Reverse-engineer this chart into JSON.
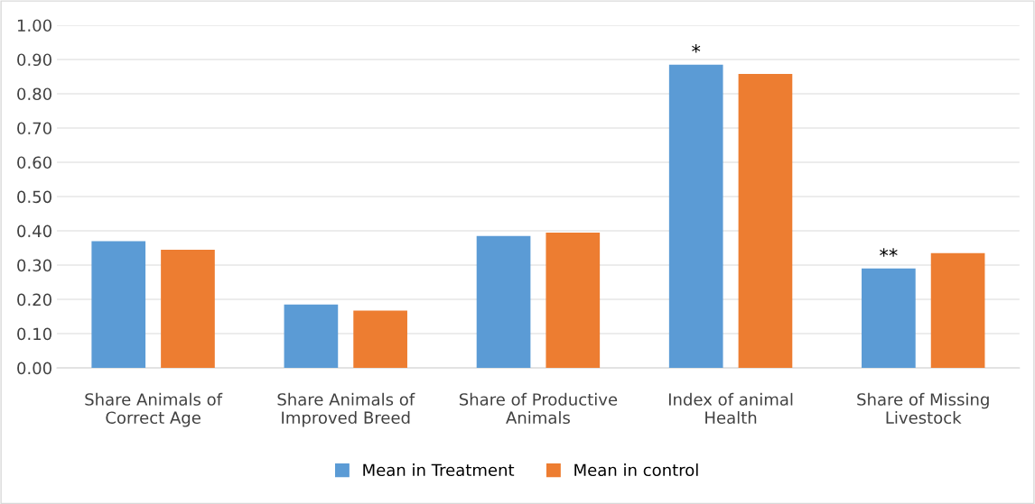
{
  "chart_data": {
    "type": "bar",
    "categories": [
      "Share Animals of\nCorrect Age",
      "Share Animals of\nImproved Breed",
      "Share of Productive\nAnimals",
      "Index of animal\nHealth",
      "Share of Missing\nLivestock"
    ],
    "series": [
      {
        "name": "Mean in Treatment",
        "color": "#5b9bd5",
        "values": [
          0.37,
          0.185,
          0.385,
          0.885,
          0.29
        ],
        "value_labels": [
          null,
          null,
          null,
          "*",
          "**"
        ]
      },
      {
        "name": "Mean in control",
        "color": "#ed7d31",
        "values": [
          0.345,
          0.167,
          0.395,
          0.858,
          0.335
        ]
      }
    ],
    "ylim": [
      0,
      1
    ],
    "yticks": [
      {
        "value": 0,
        "label": "0.00"
      },
      {
        "value": 0.1,
        "label": "0.10"
      },
      {
        "value": 0.2,
        "label": "0.20"
      },
      {
        "value": 0.3,
        "label": "0.30"
      },
      {
        "value": 0.4,
        "label": "0.40"
      },
      {
        "value": 0.5,
        "label": "0.50"
      },
      {
        "value": 0.6,
        "label": "0.60"
      },
      {
        "value": 0.7,
        "label": "0.70"
      },
      {
        "value": 0.8,
        "label": "0.80"
      },
      {
        "value": 0.9,
        "label": "0.90"
      },
      {
        "value": 1,
        "label": "1.00"
      }
    ],
    "grid": "y",
    "legend": "bottom"
  }
}
